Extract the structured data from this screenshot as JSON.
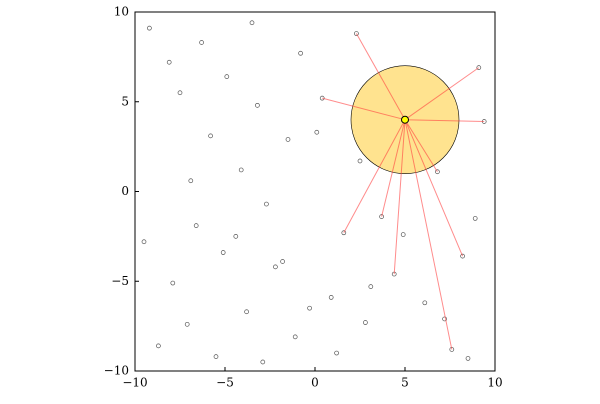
{
  "chart_data": {
    "type": "scatter",
    "xlim": [
      -10,
      10
    ],
    "ylim": [
      -10,
      10
    ],
    "xticks": [
      {
        "value": -10,
        "label": "−10"
      },
      {
        "value": -5,
        "label": "−5"
      },
      0,
      5,
      10
    ],
    "yticks": [
      {
        "value": -10,
        "label": "−10"
      },
      {
        "value": -5,
        "label": "−5"
      },
      0,
      5,
      10
    ],
    "grid": false,
    "series": [
      {
        "kind": "points",
        "color": "#555555",
        "x": [
          -9.2,
          -8.1,
          -7.5,
          -6.3,
          -5.8,
          -4.9,
          -4.1,
          -3.2,
          -2.7,
          -1.5,
          -0.8,
          0.4,
          1.6,
          2.3,
          3.7,
          6.8,
          8.2,
          9.1,
          -9.5,
          -7.9,
          -6.6,
          -5.1,
          -3.8,
          -2.2,
          -1.1,
          0.9,
          2.8,
          4.4,
          6.1,
          7.6,
          8.9,
          -8.7,
          -7.1,
          -5.5,
          -4.4,
          -2.9,
          -1.8,
          -0.3,
          1.2,
          3.1,
          4.9,
          7.2,
          8.5,
          -6.9,
          -3.5,
          0.1,
          2.5,
          9.4
        ],
        "values": [
          9.1,
          7.2,
          5.5,
          8.3,
          3.1,
          6.4,
          1.2,
          4.8,
          -0.7,
          2.9,
          7.7,
          5.2,
          -2.3,
          8.8,
          -1.4,
          1.1,
          -3.6,
          6.9,
          -2.8,
          -5.1,
          -1.9,
          -3.4,
          -6.7,
          -4.2,
          -8.1,
          -5.9,
          -7.3,
          -4.6,
          -6.2,
          -8.8,
          -1.5,
          -8.6,
          -7.4,
          -9.2,
          -2.5,
          -9.5,
          -3.9,
          -6.5,
          -9.0,
          -5.3,
          -2.4,
          -7.1,
          -9.3,
          0.6,
          9.4,
          3.3,
          1.7,
          3.9
        ]
      },
      {
        "kind": "links",
        "color": "#ff4040",
        "x": [
          5,
          8.2,
          null,
          5,
          2.3,
          null,
          5,
          9.1,
          null,
          5,
          6.8,
          null,
          5,
          3.7,
          null,
          5,
          1.6,
          null,
          5,
          0.4,
          null,
          5,
          7.6,
          null,
          5,
          4.4,
          null,
          5,
          9.4
        ],
        "values": [
          4,
          -3.6,
          null,
          4,
          8.8,
          null,
          4,
          6.9,
          null,
          4,
          1.1,
          null,
          4,
          -1.4,
          null,
          4,
          -2.3,
          null,
          4,
          5.2,
          null,
          4,
          -8.8,
          null,
          4,
          -4.6,
          null,
          4,
          3.9
        ]
      }
    ],
    "highlight": {
      "x": 5,
      "y": 4,
      "radius": 3,
      "color": "#ffcc33",
      "node_color": "#ffff00"
    }
  }
}
